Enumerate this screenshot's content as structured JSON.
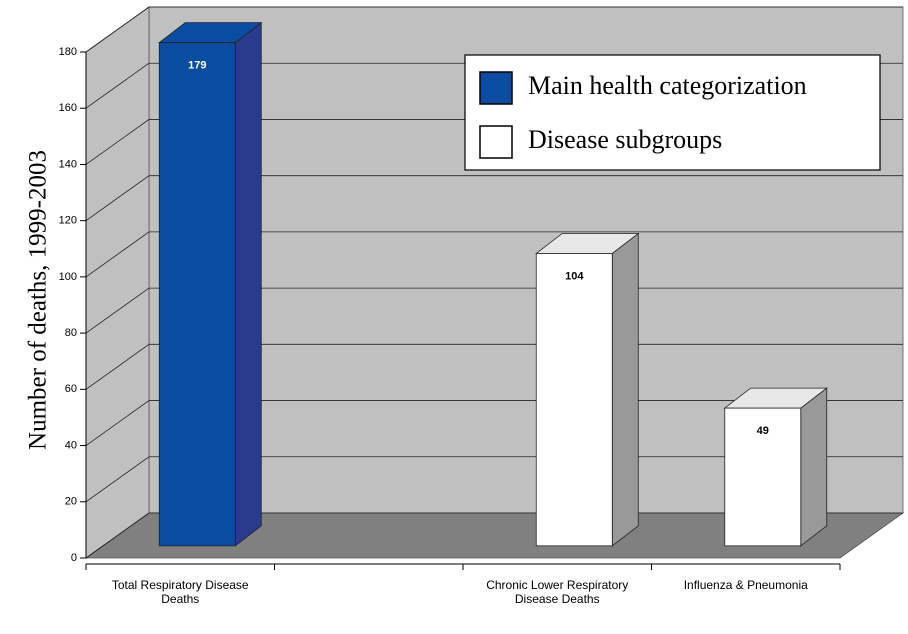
{
  "chart_data": {
    "type": "bar3d",
    "y_label": "Number of deaths, 1999-2003",
    "categories": [
      "Total Respiratory Disease Deaths",
      null,
      "Chronic Lower Respiratory Disease Deaths",
      "Influenza & Pneumonia"
    ],
    "series": [
      {
        "name": "Main health categorization",
        "color": "#0a4da0",
        "values": [
          179,
          null,
          null,
          null
        ]
      },
      {
        "name": "Disease subgroups",
        "color": "#ffffff",
        "values": [
          null,
          null,
          104,
          49
        ]
      }
    ],
    "ylim": [
      0,
      180
    ],
    "yticks": [
      0,
      20,
      40,
      60,
      80,
      100,
      120,
      140,
      160,
      180
    ],
    "grid": true,
    "legend": "upper right"
  }
}
